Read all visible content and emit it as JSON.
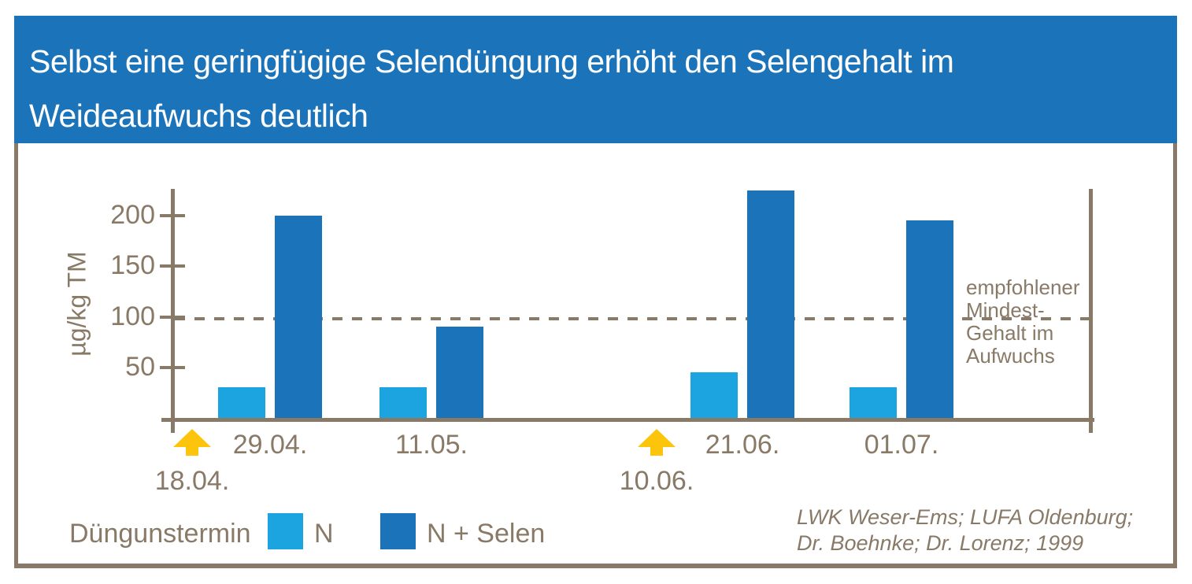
{
  "header": {
    "title_lines": [
      "Selbst eine geringfügige Selendüngung erhöht den Selengehalt im",
      "Weideaufwuchs deutlich"
    ],
    "background_color": "#1b73b9",
    "text_color": "#ffffff"
  },
  "chart_data": {
    "type": "bar",
    "title": "Selbst eine geringfügige Selendüngung erhöht den Selengehalt im Weideaufwuchs deutlich",
    "ylabel": "µg/kg TM",
    "xlabel": "",
    "ylim": [
      0,
      230
    ],
    "yticks": [
      50,
      100,
      150,
      200
    ],
    "grid": false,
    "categories": [
      "29.04.",
      "11.05.",
      "21.06.",
      "01.07."
    ],
    "series": [
      {
        "name": "N",
        "color": "#1ca4e0",
        "values": [
          30,
          30,
          45,
          30
        ]
      },
      {
        "name": "N + Selen",
        "color": "#1b74ba",
        "values": [
          200,
          90,
          225,
          195
        ]
      }
    ],
    "threshold": {
      "value": 100,
      "style": "dashed",
      "label_lines": [
        "empfohlener",
        "Mindest-",
        "Gehalt im",
        "Aufwuchs"
      ]
    },
    "fertilization_dates": [
      {
        "label": "18.04.",
        "before_category_index": 0
      },
      {
        "label": "10.06.",
        "before_category_index": 2
      }
    ],
    "legend": {
      "title": "Düngunstermin",
      "position": "bottom-left"
    },
    "axis_color": "#897a67",
    "arrow_color": "#fcc50c"
  },
  "source": {
    "lines": [
      "LWK Weser-Ems; LUFA Oldenburg;",
      "Dr. Boehnke; Dr. Lorenz; 1999"
    ]
  }
}
